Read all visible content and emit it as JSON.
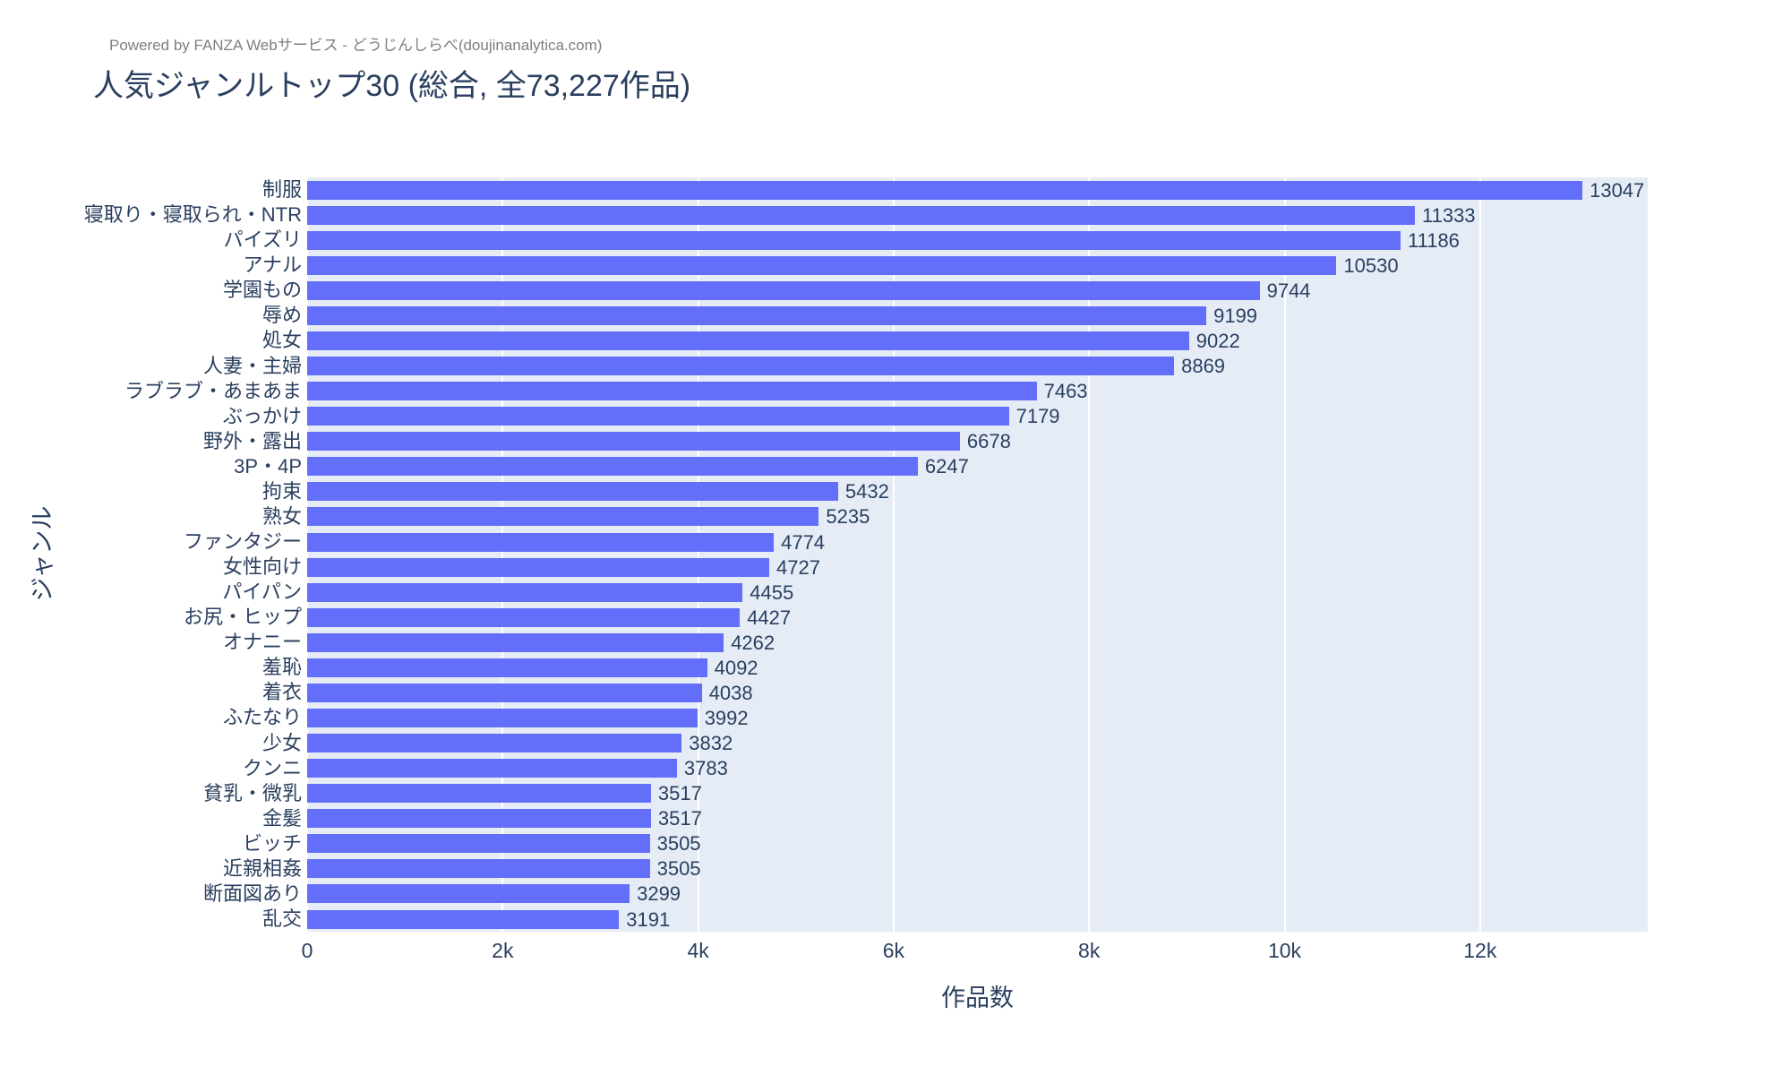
{
  "header": {
    "powered_by": "Powered by FANZA Webサービス - どうじんしらべ(doujinanalytica.com)"
  },
  "chart_data": {
    "type": "bar",
    "orientation": "horizontal",
    "title": "人気ジャンルトップ30 (総合, 全73,227作品)",
    "xlabel": "作品数",
    "ylabel": "ジャンル",
    "categories": [
      "制服",
      "寝取り・寝取られ・NTR",
      "パイズリ",
      "アナル",
      "学園もの",
      "辱め",
      "処女",
      "人妻・主婦",
      "ラブラブ・あまあま",
      "ぶっかけ",
      "野外・露出",
      "3P・4P",
      "拘束",
      "熟女",
      "ファンタジー",
      "女性向け",
      "パイパン",
      "お尻・ヒップ",
      "オナニー",
      "羞恥",
      "着衣",
      "ふたなり",
      "少女",
      "クンニ",
      "貧乳・微乳",
      "金髪",
      "ビッチ",
      "近親相姦",
      "断面図あり",
      "乱交"
    ],
    "values": [
      13047,
      11333,
      11186,
      10530,
      9744,
      9199,
      9022,
      8869,
      7463,
      7179,
      6678,
      6247,
      5432,
      5235,
      4774,
      4727,
      4455,
      4427,
      4262,
      4092,
      4038,
      3992,
      3832,
      3783,
      3517,
      3517,
      3505,
      3505,
      3299,
      3191
    ],
    "xlim": [
      0,
      13715
    ],
    "xticks": [
      {
        "value": 0,
        "label": "0"
      },
      {
        "value": 2000,
        "label": "2k"
      },
      {
        "value": 4000,
        "label": "4k"
      },
      {
        "value": 6000,
        "label": "6k"
      },
      {
        "value": 8000,
        "label": "8k"
      },
      {
        "value": 10000,
        "label": "10k"
      },
      {
        "value": 12000,
        "label": "12k"
      }
    ],
    "grid": true,
    "legend": "none",
    "value_labels_position": "outside",
    "colors": {
      "bar": "#636efa",
      "plot_background": "#e5ecf6",
      "text": "#2a3f5f",
      "gridline": "#ffffff",
      "annotation_gray": "#7f7f7f"
    }
  }
}
